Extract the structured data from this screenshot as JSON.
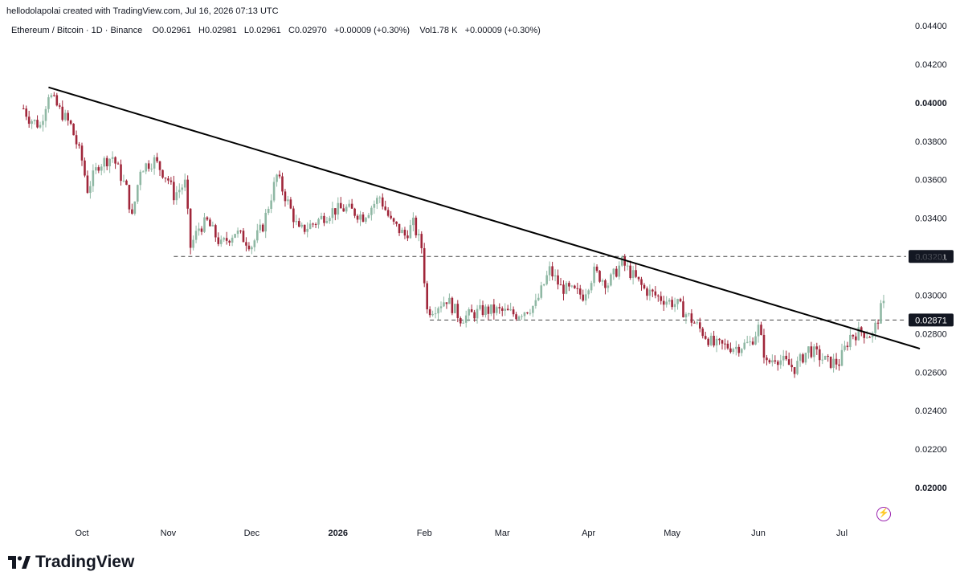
{
  "header": {
    "caption": "hellodolapolai created with TradingView.com, Jul 16, 2026 07:13 UTC"
  },
  "legend": {
    "symbol": "Ethereum / Bitcoin · 1D · Binance",
    "open": "O0.02961",
    "high": "H0.02981",
    "low": "L0.02961",
    "close": "C0.02970",
    "change": "+0.00009 (+0.30%)",
    "volume": "Vol1.78 K",
    "change2": "+0.00009 (+0.30%)"
  },
  "brand": {
    "name": "TradingView",
    "logo_icon": "tradingview-logo-icon"
  },
  "colors": {
    "up": "#8fb8a4",
    "down": "#a0263a",
    "trend": "#000000",
    "level": "#444444"
  },
  "chart_data": {
    "type": "candlestick",
    "title": "Ethereum / Bitcoin · 1D · Binance",
    "ylim": [
      0.0193,
      0.0447
    ],
    "y_ticks": [
      "0.04400",
      "0.04200",
      "0.04000",
      "0.03800",
      "0.03600",
      "0.03400",
      "0.03200",
      "0.03000",
      "0.02800",
      "0.02600",
      "0.02400",
      "0.02200",
      "0.02000"
    ],
    "y_ticks_bold": [
      "0.04000",
      "0.02000"
    ],
    "x_ticks": [
      {
        "label": "Oct",
        "date": "2025-10-01",
        "bold": false
      },
      {
        "label": "Nov",
        "date": "2025-11-01",
        "bold": false
      },
      {
        "label": "Dec",
        "date": "2025-12-01",
        "bold": false
      },
      {
        "label": "2026",
        "date": "2026-01-01",
        "bold": true
      },
      {
        "label": "Feb",
        "date": "2026-02-01",
        "bold": false
      },
      {
        "label": "Mar",
        "date": "2026-03-01",
        "bold": false
      },
      {
        "label": "Apr",
        "date": "2026-04-01",
        "bold": false
      },
      {
        "label": "May",
        "date": "2026-05-01",
        "bold": false
      },
      {
        "label": "Jun",
        "date": "2026-06-01",
        "bold": false
      },
      {
        "label": "Jul",
        "date": "2026-07-01",
        "bold": false
      }
    ],
    "price_levels": [
      {
        "label": "0.03201",
        "value": 0.03201,
        "start": "2025-11-03"
      },
      {
        "label": "0.02871",
        "value": 0.02871,
        "start": "2026-02-03"
      }
    ],
    "trendline": {
      "start": [
        "2025-09-19",
        0.0408
      ],
      "end": [
        "2026-07-29",
        0.02722
      ]
    },
    "close_anchors": [
      [
        "2025-09-10",
        0.0397
      ],
      [
        "2025-09-12",
        0.0392
      ],
      [
        "2025-09-16",
        0.0388
      ],
      [
        "2025-09-19",
        0.0405
      ],
      [
        "2025-09-23",
        0.0396
      ],
      [
        "2025-09-27",
        0.0388
      ],
      [
        "2025-10-01",
        0.037
      ],
      [
        "2025-10-03",
        0.0355
      ],
      [
        "2025-10-07",
        0.0368
      ],
      [
        "2025-10-12",
        0.0372
      ],
      [
        "2025-10-17",
        0.0355
      ],
      [
        "2025-10-19",
        0.034
      ],
      [
        "2025-10-22",
        0.0366
      ],
      [
        "2025-10-27",
        0.037
      ],
      [
        "2025-11-01",
        0.036
      ],
      [
        "2025-11-03",
        0.0352
      ],
      [
        "2025-11-07",
        0.0358
      ],
      [
        "2025-11-09",
        0.0325
      ],
      [
        "2025-11-12",
        0.0335
      ],
      [
        "2025-11-15",
        0.0338
      ],
      [
        "2025-11-20",
        0.0326
      ],
      [
        "2025-11-25",
        0.0333
      ],
      [
        "2025-12-01",
        0.0326
      ],
      [
        "2025-12-05",
        0.0336
      ],
      [
        "2025-12-10",
        0.0362
      ],
      [
        "2025-12-14",
        0.0348
      ],
      [
        "2025-12-18",
        0.0333
      ],
      [
        "2025-12-24",
        0.0338
      ],
      [
        "2025-12-30",
        0.0344
      ],
      [
        "2026-01-04",
        0.0345
      ],
      [
        "2026-01-10",
        0.0341
      ],
      [
        "2026-01-16",
        0.0351
      ],
      [
        "2026-01-20",
        0.0338
      ],
      [
        "2026-01-25",
        0.0331
      ],
      [
        "2026-01-28",
        0.0337
      ],
      [
        "2026-01-31",
        0.0325
      ],
      [
        "2026-02-02",
        0.0292
      ],
      [
        "2026-02-04",
        0.0293
      ],
      [
        "2026-02-09",
        0.0298
      ],
      [
        "2026-02-14",
        0.0288
      ],
      [
        "2026-02-22",
        0.0292
      ],
      [
        "2026-02-27",
        0.0292
      ],
      [
        "2026-03-06",
        0.029
      ],
      [
        "2026-03-13",
        0.0295
      ],
      [
        "2026-03-18",
        0.0313
      ],
      [
        "2026-03-22",
        0.0304
      ],
      [
        "2026-03-30",
        0.03
      ],
      [
        "2026-04-03",
        0.0312
      ],
      [
        "2026-04-08",
        0.0306
      ],
      [
        "2026-04-13",
        0.0317
      ],
      [
        "2026-04-17",
        0.031
      ],
      [
        "2026-04-21",
        0.0303
      ],
      [
        "2026-04-26",
        0.0299
      ],
      [
        "2026-05-03",
        0.0295
      ],
      [
        "2026-05-10",
        0.0284
      ],
      [
        "2026-05-16",
        0.0274
      ],
      [
        "2026-05-24",
        0.0273
      ],
      [
        "2026-05-29",
        0.0275
      ],
      [
        "2026-06-01",
        0.0283
      ],
      [
        "2026-06-04",
        0.0264
      ],
      [
        "2026-06-07",
        0.0268
      ],
      [
        "2026-06-14",
        0.0262
      ],
      [
        "2026-06-19",
        0.0272
      ],
      [
        "2026-06-26",
        0.0265
      ],
      [
        "2026-06-30",
        0.0265
      ],
      [
        "2026-07-04",
        0.0279
      ],
      [
        "2026-07-08",
        0.0281
      ],
      [
        "2026-07-12",
        0.0279
      ],
      [
        "2026-07-16",
        0.0297
      ]
    ]
  }
}
